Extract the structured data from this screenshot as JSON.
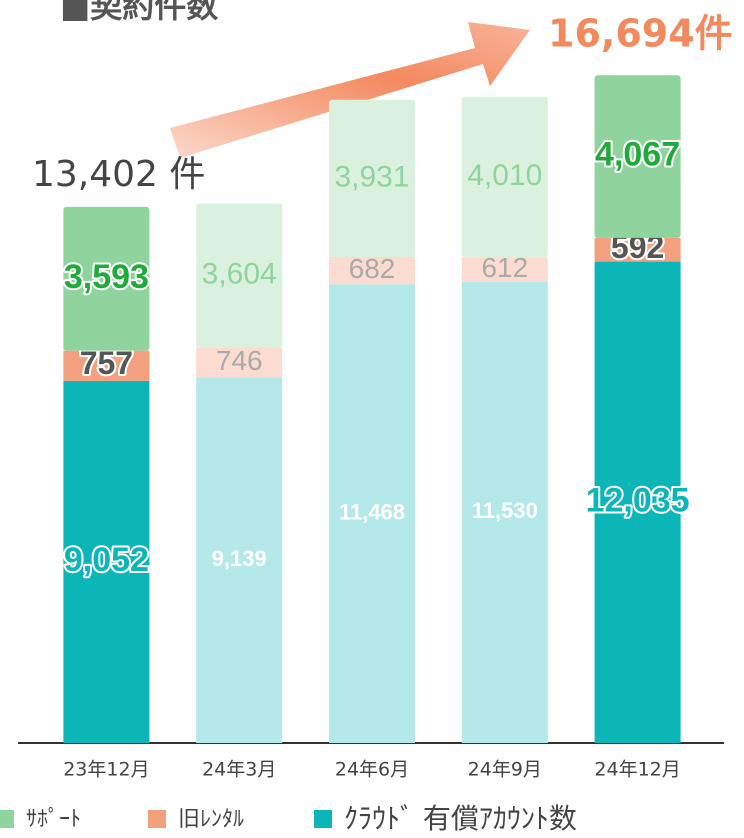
{
  "chart_data": {
    "type": "stacked_bar",
    "title": "■契約件数",
    "categories": [
      "23年12月",
      "24年3月",
      "24年6月",
      "24年9月",
      "24年12月"
    ],
    "series": [
      {
        "name": "ｸﾗｳﾄﾞ 有償ｱｶｳﾝﾄ数",
        "color": "#0bb5b8",
        "faded_color": "#b5e9e9",
        "values": [
          9052,
          9139,
          11468,
          11530,
          12035
        ],
        "value_labels": [
          "9,052",
          "9,139",
          "11,468",
          "11,530",
          "12,035"
        ]
      },
      {
        "name": "旧ﾚﾝﾀﾙ",
        "color": "#f2a07e",
        "faded_color": "#fcdcd0",
        "values": [
          757,
          746,
          682,
          612,
          592
        ],
        "value_labels": [
          "757",
          "746",
          "682",
          "612",
          "592"
        ]
      },
      {
        "name": "ｻﾎﾟｰﾄ",
        "color": "#8fd49c",
        "faded_color": "#daf1df",
        "values": [
          3593,
          3604,
          3931,
          4010,
          4067
        ],
        "value_labels": [
          "3,593",
          "3,604",
          "3,931",
          "4,010",
          "4,067"
        ]
      }
    ],
    "highlighted": [
      true,
      false,
      false,
      false,
      true
    ],
    "annotations": [
      "13,402 件",
      "16,694件"
    ],
    "ylim": [
      0,
      18500
    ]
  }
}
